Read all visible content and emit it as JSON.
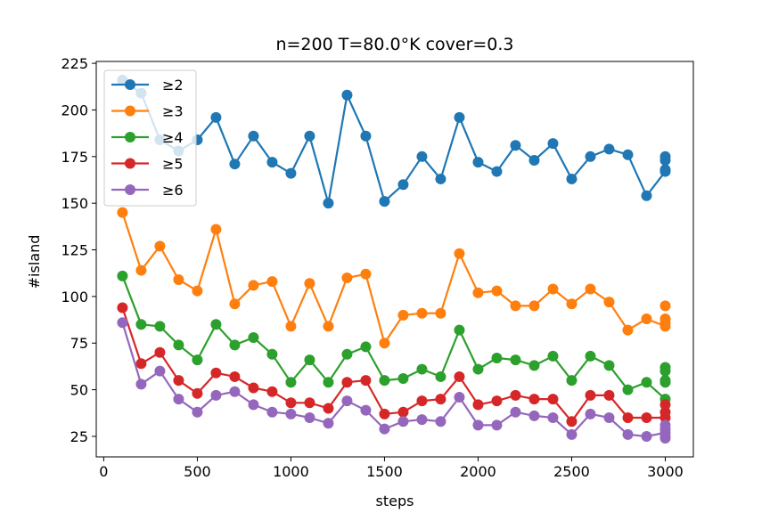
{
  "chart_data": {
    "type": "line",
    "title": "n=200 T=80.0°K cover=0.3",
    "xlabel": "steps",
    "ylabel": "#island",
    "xlim": [
      -40,
      3150
    ],
    "ylim": [
      14,
      226
    ],
    "xticks": [
      0,
      500,
      1000,
      1500,
      2000,
      2500,
      3000
    ],
    "yticks": [
      25,
      50,
      75,
      100,
      125,
      150,
      175,
      200,
      225
    ],
    "grid": false,
    "legend_position": "upper-left",
    "x": [
      100,
      200,
      300,
      400,
      500,
      600,
      700,
      800,
      900,
      1000,
      1100,
      1200,
      1300,
      1400,
      1500,
      1600,
      1700,
      1800,
      1900,
      2000,
      2100,
      2200,
      2300,
      2400,
      2500,
      2600,
      2700,
      2800,
      2900,
      3000
    ],
    "series": [
      {
        "name": "≥2",
        "color": "#1f77b4",
        "values": [
          216,
          209,
          184,
          178,
          184,
          196,
          171,
          186,
          172,
          166,
          186,
          150,
          208,
          186,
          151,
          160,
          175,
          163,
          196,
          172,
          167,
          181,
          173,
          182,
          163,
          175,
          179,
          176,
          154,
          167
        ],
        "extra_points": [
          [
            3000,
            168
          ],
          [
            3000,
            173
          ],
          [
            3000,
            175
          ]
        ]
      },
      {
        "name": "≥3",
        "color": "#ff7f0e",
        "values": [
          145,
          114,
          127,
          109,
          103,
          136,
          96,
          106,
          108,
          84,
          107,
          84,
          110,
          112,
          75,
          90,
          91,
          91,
          123,
          102,
          103,
          95,
          95,
          104,
          96,
          104,
          97,
          82,
          88,
          84
        ],
        "extra_points": [
          [
            3000,
            86
          ],
          [
            3000,
            88
          ],
          [
            3000,
            95
          ]
        ]
      },
      {
        "name": "≥4",
        "color": "#2ca02c",
        "values": [
          111,
          85,
          84,
          74,
          66,
          85,
          74,
          78,
          69,
          54,
          66,
          54,
          69,
          73,
          55,
          56,
          61,
          57,
          82,
          61,
          67,
          66,
          63,
          68,
          55,
          68,
          63,
          50,
          54,
          45
        ],
        "extra_points": [
          [
            3000,
            54
          ],
          [
            3000,
            55
          ],
          [
            3000,
            60
          ],
          [
            3000,
            62
          ]
        ]
      },
      {
        "name": "≥5",
        "color": "#d62728",
        "values": [
          94,
          64,
          70,
          55,
          48,
          59,
          57,
          51,
          49,
          43,
          43,
          40,
          54,
          55,
          37,
          38,
          44,
          45,
          57,
          42,
          44,
          47,
          45,
          45,
          33,
          47,
          47,
          35,
          35,
          35
        ],
        "extra_points": [
          [
            3000,
            38
          ],
          [
            3000,
            42
          ]
        ]
      },
      {
        "name": "≥6",
        "color": "#9467bd",
        "values": [
          86,
          53,
          60,
          45,
          38,
          47,
          49,
          42,
          38,
          37,
          35,
          32,
          44,
          39,
          29,
          33,
          34,
          33,
          46,
          31,
          31,
          38,
          36,
          35,
          26,
          37,
          35,
          26,
          25,
          27
        ],
        "extra_points": [
          [
            3000,
            24
          ],
          [
            3000,
            25
          ],
          [
            3000,
            29
          ],
          [
            3000,
            31
          ]
        ]
      }
    ]
  }
}
